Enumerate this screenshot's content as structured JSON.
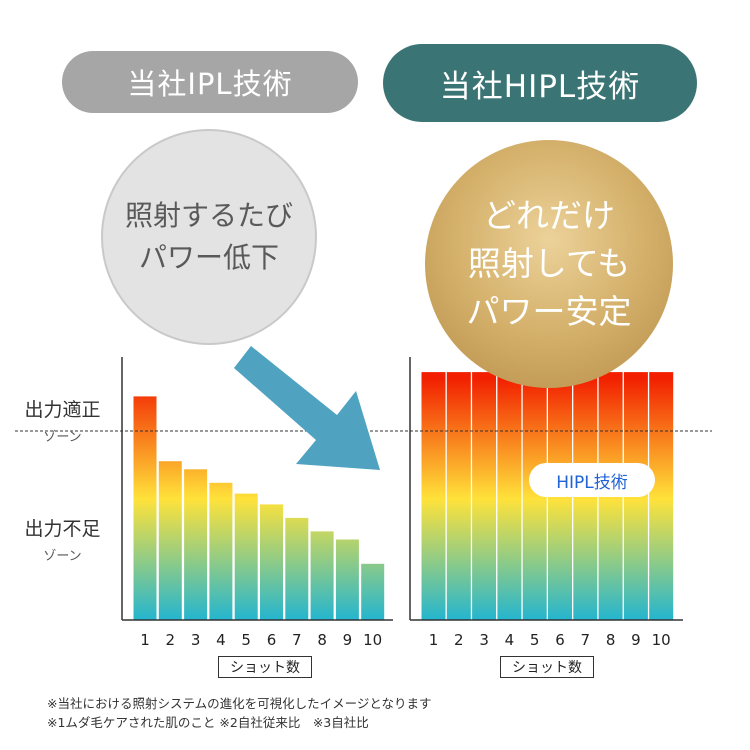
{
  "header": {
    "left_label": "当社IPL技術",
    "right_label": "当社HIPL技術"
  },
  "bubbles": {
    "left": [
      "照射するたび",
      "パワー低下"
    ],
    "right": [
      "どれだけ",
      "照射しても",
      "パワー安定"
    ]
  },
  "zones": {
    "proper": {
      "main": "出力適正",
      "sub": "ゾーン"
    },
    "short": {
      "main": "出力不足",
      "sub": "ゾーン"
    }
  },
  "badge": "HIPL技術",
  "footnotes": [
    "※当社における照射システムの進化を可視化したイメージとなります",
    "※1ムダ毛ケアされた肌のこと ※2自社従来比　※3自社比"
  ],
  "colors": {
    "left_pill": "#a6a6a6",
    "right_pill": "#3b7474",
    "arrow": "#4fa3c0",
    "bar_top": "#f21f00",
    "bar_mid": "#ffe23a",
    "bar_bottom": "#24b5cf"
  },
  "chart_data": [
    {
      "type": "bar",
      "categories": [
        "1",
        "2",
        "3",
        "4",
        "5",
        "6",
        "7",
        "8",
        "9",
        "10"
      ],
      "values": [
        83,
        59,
        56,
        51,
        47,
        43,
        38,
        33,
        30,
        21
      ],
      "ylim": [
        0,
        100
      ],
      "threshold": 70,
      "xlabel": "ショット数"
    },
    {
      "type": "bar",
      "categories": [
        "1",
        "2",
        "3",
        "4",
        "5",
        "6",
        "7",
        "8",
        "9",
        "10"
      ],
      "values": [
        92,
        92,
        92,
        92,
        92,
        92,
        92,
        92,
        92,
        92
      ],
      "ylim": [
        0,
        100
      ],
      "threshold": 70,
      "xlabel": "ショット数"
    }
  ]
}
